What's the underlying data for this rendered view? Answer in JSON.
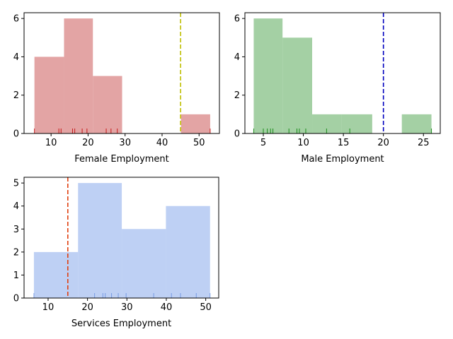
{
  "chart_data": [
    {
      "type": "histogram",
      "xlabel": "Female Employment",
      "ylabel": "",
      "xlim": [
        2.7,
        55.5
      ],
      "ylim": [
        0,
        6.3
      ],
      "xticks": [
        10,
        20,
        30,
        40,
        50
      ],
      "yticks": [
        0,
        2,
        4,
        6
      ],
      "bars": [
        {
          "x0": 5.5,
          "x1": 13.5,
          "count": 4
        },
        {
          "x0": 13.5,
          "x1": 21.3,
          "count": 6
        },
        {
          "x0": 21.3,
          "x1": 29.2,
          "count": 3
        },
        {
          "x0": 29.2,
          "x1": 37.1,
          "count": 0
        },
        {
          "x0": 37.1,
          "x1": 45.1,
          "count": 0
        },
        {
          "x0": 45.1,
          "x1": 53.0,
          "count": 1
        }
      ],
      "rug": [
        5.5,
        12.1,
        12.7,
        15.8,
        16.4,
        18.4,
        19.7,
        24.9,
        26.2,
        27.9,
        53.0
      ],
      "reference_line": 45.0,
      "bar_color": "#d98585",
      "rug_color": "#c00000",
      "line_color": "#bfbf00"
    },
    {
      "type": "histogram",
      "xlabel": "Male Employment",
      "ylabel": "",
      "xlim": [
        2.7,
        27.1
      ],
      "ylim": [
        0,
        6.3
      ],
      "xticks": [
        5,
        10,
        15,
        20,
        25
      ],
      "yticks": [
        0,
        2,
        4,
        6
      ],
      "bars": [
        {
          "x0": 3.8,
          "x1": 7.4,
          "count": 6
        },
        {
          "x0": 7.4,
          "x1": 11.1,
          "count": 5
        },
        {
          "x0": 11.1,
          "x1": 14.8,
          "count": 1
        },
        {
          "x0": 14.8,
          "x1": 18.6,
          "count": 1
        },
        {
          "x0": 18.6,
          "x1": 22.3,
          "count": 0
        },
        {
          "x0": 22.3,
          "x1": 26.0,
          "count": 1
        }
      ],
      "rug": [
        3.8,
        5.0,
        5.5,
        5.9,
        6.2,
        8.2,
        9.2,
        9.5,
        10.3,
        12.9,
        15.8,
        26.0
      ],
      "reference_line": 20.0,
      "bar_color": "#85c085",
      "rug_color": "#008000",
      "line_color": "#0000bf"
    },
    {
      "type": "histogram",
      "xlabel": "Services Employment",
      "ylabel": "",
      "xlim": [
        3.9,
        53.3
      ],
      "ylim": [
        0,
        5.25
      ],
      "xticks": [
        10,
        20,
        30,
        40,
        50
      ],
      "yticks": [
        0,
        1,
        2,
        3,
        4,
        5
      ],
      "bars": [
        {
          "x0": 6.4,
          "x1": 17.6,
          "count": 2
        },
        {
          "x0": 17.6,
          "x1": 28.7,
          "count": 5
        },
        {
          "x0": 28.7,
          "x1": 39.9,
          "count": 3
        },
        {
          "x0": 39.9,
          "x1": 51.1,
          "count": 4
        }
      ],
      "rug": [
        6.4,
        21.8,
        23.9,
        24.5,
        26.1,
        27.8,
        29.8,
        36.8,
        41.3,
        43.6,
        47.6,
        51.1
      ],
      "reference_line": 15.0,
      "bar_color": "#a8c0f0",
      "rug_color": "#6a90e0",
      "line_color": "#e04010"
    }
  ]
}
